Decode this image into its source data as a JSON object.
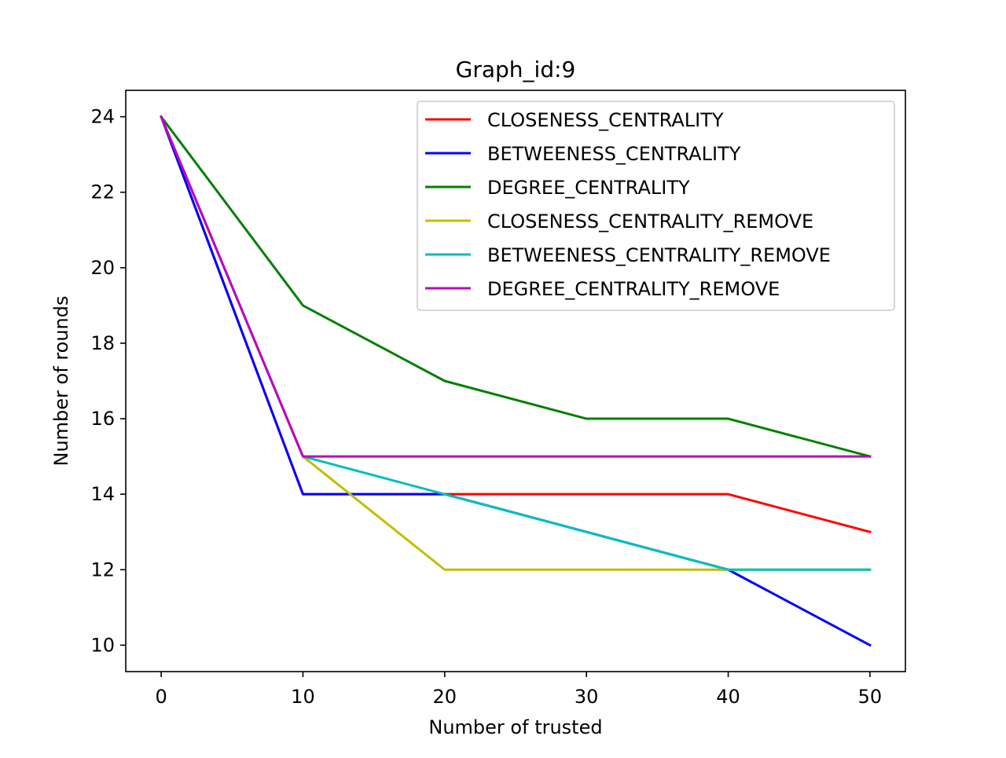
{
  "chart_data": {
    "type": "line",
    "title": "Graph_id:9",
    "xlabel": "Number of trusted",
    "ylabel": "Number of rounds",
    "x": [
      0,
      10,
      20,
      30,
      40,
      50
    ],
    "xlim": [
      -2.5,
      52.5
    ],
    "ylim": [
      9.3,
      24.7
    ],
    "xticks": [
      0,
      10,
      20,
      30,
      40,
      50
    ],
    "yticks": [
      10,
      12,
      14,
      16,
      18,
      20,
      22,
      24
    ],
    "grid": false,
    "legend_position": "top-right",
    "series": [
      {
        "name": "CLOSENESS_CENTRALITY",
        "color": "#ff0000",
        "values": [
          24,
          14,
          14,
          14,
          14,
          13
        ]
      },
      {
        "name": "BETWEENESS_CENTRALITY",
        "color": "#0000ff",
        "values": [
          24,
          14,
          14,
          13,
          12,
          10
        ]
      },
      {
        "name": "DEGREE_CENTRALITY",
        "color": "#008000",
        "values": [
          24,
          19,
          17,
          16,
          16,
          15
        ]
      },
      {
        "name": "CLOSENESS_CENTRALITY_REMOVE",
        "color": "#bfbf00",
        "values": [
          24,
          15,
          12,
          12,
          12,
          12
        ]
      },
      {
        "name": "BETWEENESS_CENTRALITY_REMOVE",
        "color": "#00bfbf",
        "values": [
          24,
          15,
          14,
          13,
          12,
          12
        ]
      },
      {
        "name": "DEGREE_CENTRALITY_REMOVE",
        "color": "#bf00bf",
        "values": [
          24,
          15,
          15,
          15,
          15,
          15
        ]
      }
    ]
  }
}
